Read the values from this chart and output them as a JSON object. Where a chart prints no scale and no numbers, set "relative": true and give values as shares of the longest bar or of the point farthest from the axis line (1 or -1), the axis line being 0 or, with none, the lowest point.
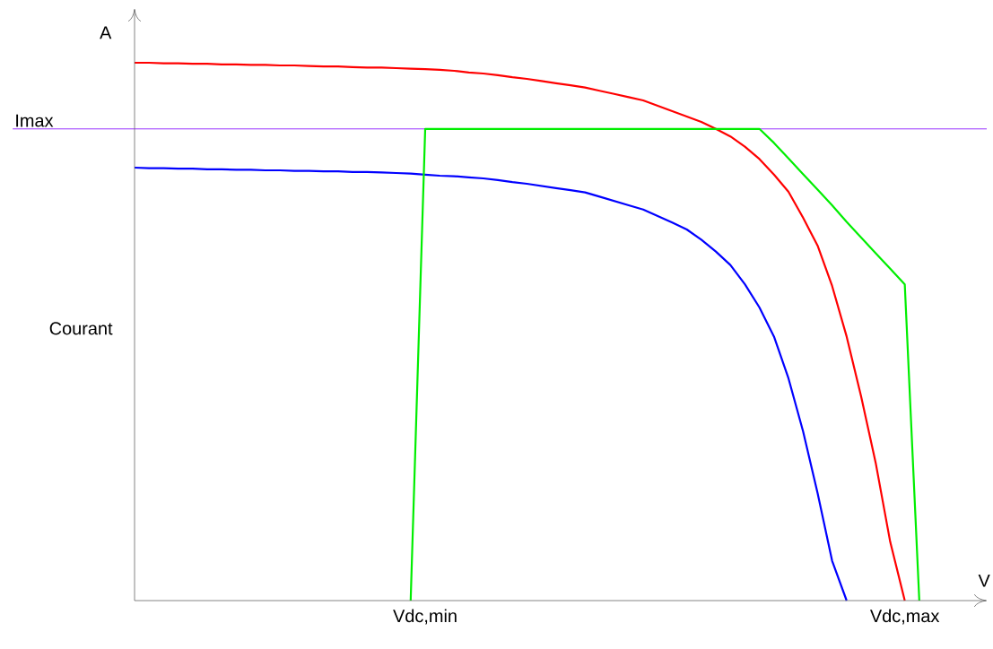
{
  "chart_data": {
    "type": "line",
    "relative": true,
    "xlabel": "V",
    "ylabel": "Courant",
    "annotations": [
      "A"
    ],
    "categories": [
      null,
      null,
      null,
      null,
      null,
      null,
      null,
      null,
      null,
      null,
      null,
      null,
      null,
      null,
      null,
      null,
      null,
      null,
      null,
      null,
      "Vdc,min",
      null,
      null,
      null,
      null,
      null,
      null,
      null,
      null,
      null,
      null,
      null,
      null,
      null,
      null,
      null,
      null,
      null,
      null,
      null,
      null,
      null,
      null,
      null,
      null,
      null,
      null,
      null,
      null,
      null,
      null,
      null,
      null,
      "Vdc,max",
      null,
      null,
      null,
      null,
      null
    ],
    "series": [
      {
        "color": "#ff0000",
        "values": [
          1.0,
          1.0,
          0.999,
          0.999,
          0.998,
          0.998,
          0.997,
          0.997,
          0.996,
          0.996,
          0.995,
          0.995,
          0.994,
          0.993,
          0.993,
          0.992,
          0.991,
          0.991,
          0.99,
          0.989,
          0.988,
          0.987,
          0.985,
          0.982,
          0.98,
          0.977,
          0.973,
          0.97,
          0.966,
          0.962,
          0.958,
          0.954,
          0.948,
          0.942,
          0.936,
          0.93,
          0.92,
          0.91,
          0.9,
          0.89,
          0.877,
          0.863,
          0.844,
          0.821,
          0.792,
          0.76,
          0.712,
          0.66,
          0.585,
          0.491,
          0.379,
          0.256,
          0.109,
          0,
          null,
          null,
          null,
          null,
          null
        ]
      },
      {
        "color": "#0000ff",
        "values": [
          0.805,
          0.804,
          0.804,
          0.803,
          0.803,
          0.802,
          0.802,
          0.801,
          0.801,
          0.8,
          0.8,
          0.799,
          0.799,
          0.798,
          0.798,
          0.797,
          0.797,
          0.796,
          0.795,
          0.794,
          0.792,
          0.79,
          0.789,
          0.787,
          0.785,
          0.782,
          0.778,
          0.775,
          0.771,
          0.767,
          0.763,
          0.759,
          0.751,
          0.743,
          0.735,
          0.727,
          0.715,
          0.703,
          0.69,
          0.671,
          0.649,
          0.624,
          0.588,
          0.545,
          0.491,
          0.413,
          0.315,
          0.2,
          0.074,
          0,
          null,
          null,
          null,
          null,
          null,
          null,
          null,
          null,
          null
        ]
      },
      {
        "color": "#00ee00",
        "values": [
          null,
          null,
          null,
          null,
          null,
          null,
          null,
          null,
          null,
          null,
          null,
          null,
          null,
          null,
          null,
          null,
          null,
          null,
          null,
          0,
          0.877,
          0.877,
          0.877,
          0.877,
          0.877,
          0.877,
          0.877,
          0.877,
          0.877,
          0.877,
          0.877,
          0.877,
          0.877,
          0.877,
          0.877,
          0.877,
          0.877,
          0.877,
          0.877,
          0.877,
          0.877,
          0.877,
          0.877,
          0.877,
          0.851,
          0.822,
          0.793,
          0.764,
          0.735,
          0.704,
          0.675,
          0.646,
          0.617,
          0.588,
          0,
          null,
          null,
          null,
          null
        ]
      }
    ],
    "ref_lines": [
      {
        "axis": "y",
        "value": 0.877,
        "label": "Imax",
        "color": "#9933ff"
      }
    ],
    "marker": "none",
    "line_style": "solid",
    "grid": false
  }
}
